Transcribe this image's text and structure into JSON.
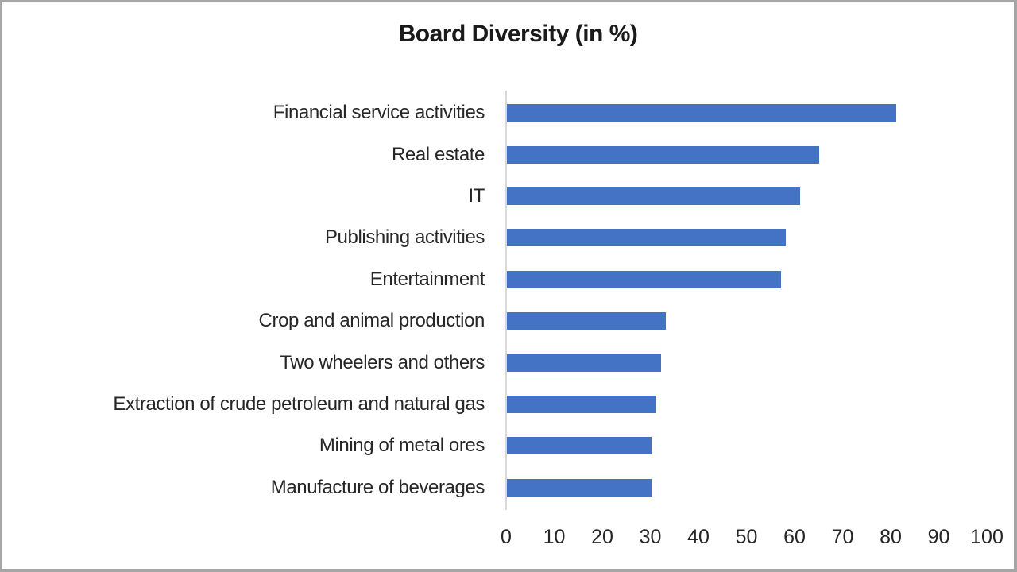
{
  "chart_data": {
    "type": "bar",
    "orientation": "horizontal",
    "title": "Board Diversity (in %)",
    "categories": [
      "Financial service activities",
      "Real estate",
      "IT",
      "Publishing activities",
      "Entertainment",
      "Crop and animal production",
      "Two wheelers and others",
      "Extraction of crude petroleum and natural gas",
      "Mining of metal ores",
      "Manufacture of beverages"
    ],
    "values": [
      81,
      65,
      61,
      58,
      57,
      33,
      32,
      31,
      30,
      30
    ],
    "xlabel": "",
    "ylabel": "",
    "xlim": [
      0,
      100
    ],
    "x_ticks": [
      0,
      10,
      20,
      30,
      40,
      50,
      60,
      70,
      80,
      90,
      100
    ],
    "grid": false,
    "legend": false,
    "bar_color": "#4472C4",
    "axis_line_color": "#D9D9D9",
    "text_color": "#262626",
    "frame_border_color": "#A6A6A6"
  }
}
